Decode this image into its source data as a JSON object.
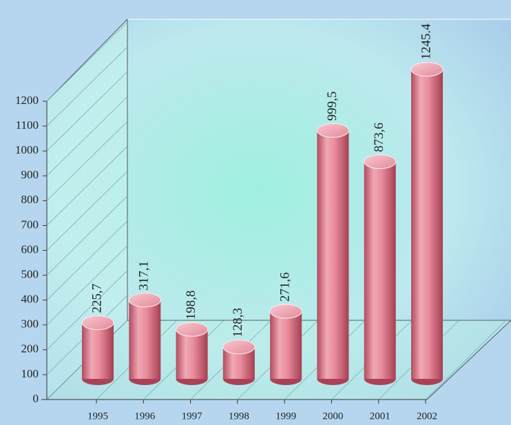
{
  "chart_data": {
    "type": "bar",
    "categories": [
      "1995",
      "1996",
      "1997",
      "1998",
      "1999",
      "2000",
      "2001",
      "2002"
    ],
    "values": [
      225.7,
      317.1,
      198.8,
      128.3,
      271.6,
      999.5,
      873.6,
      1245.4
    ],
    "value_labels": [
      "225,7",
      "317,1",
      "198,8",
      "128,3",
      "271,6",
      "999,5",
      "873,6",
      "1245.4"
    ],
    "color": "#e07a8c",
    "ylim": [
      0,
      1200
    ],
    "yticks": [
      0,
      100,
      200,
      300,
      400,
      500,
      600,
      700,
      800,
      900,
      1000,
      1100,
      1200
    ],
    "grid": true
  }
}
